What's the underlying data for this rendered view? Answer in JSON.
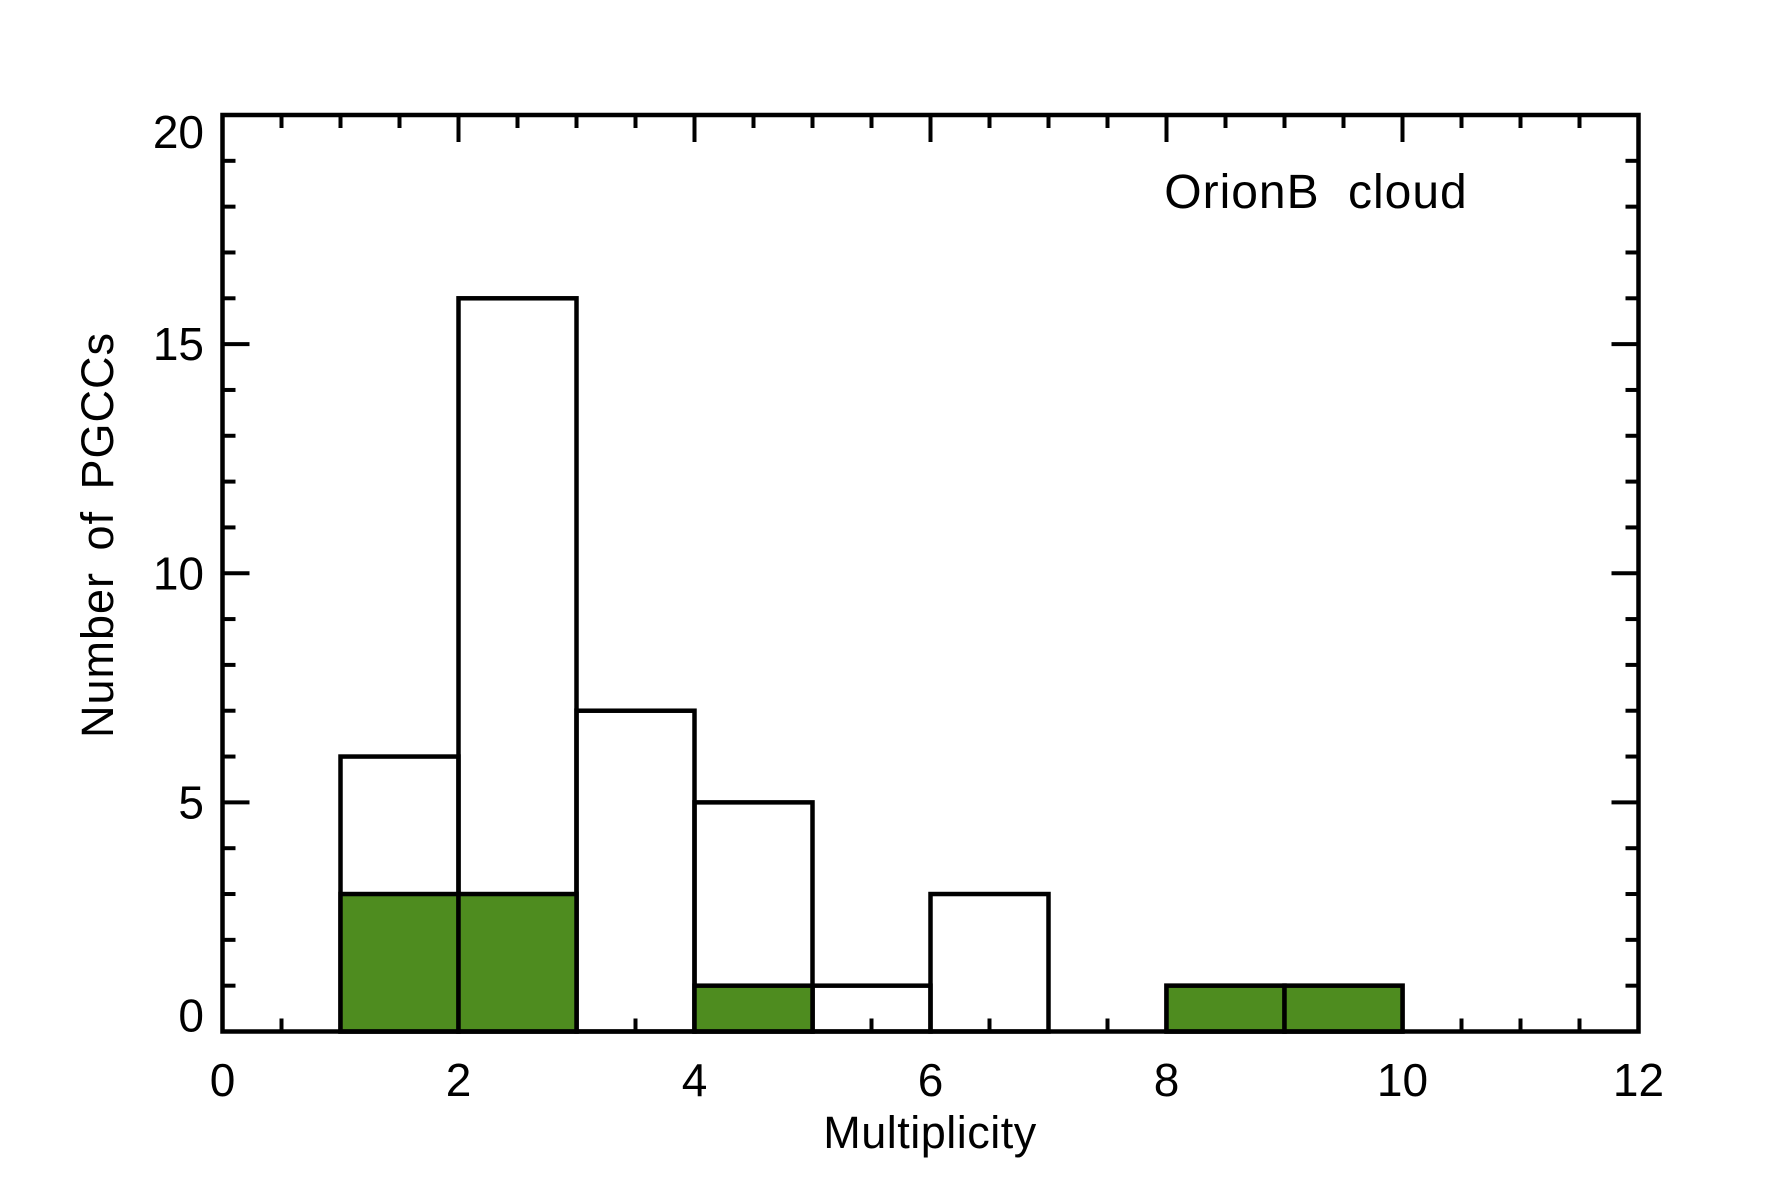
{
  "chart_data": {
    "type": "bar",
    "subtype": "histogram",
    "title": "OrionB cloud",
    "xlabel": "Multiplicity",
    "ylabel": "Number of PGCCs",
    "xlim": [
      0,
      12
    ],
    "ylim": [
      0,
      20
    ],
    "x_major_ticks": [
      0,
      2,
      4,
      6,
      8,
      10,
      12
    ],
    "x_tick_labels": [
      "0",
      "2",
      "4",
      "6",
      "8",
      "10",
      "12"
    ],
    "x_minor_tick_step": 0.5,
    "y_major_ticks": [
      0,
      5,
      10,
      15,
      20
    ],
    "y_tick_labels": [
      "0",
      "5",
      "10",
      "15",
      "20"
    ],
    "y_minor_tick_step": 1,
    "grid": false,
    "legend": "none",
    "bin_edges": [
      0,
      1,
      2,
      3,
      4,
      5,
      6,
      7,
      8,
      9,
      10,
      11,
      12
    ],
    "series": [
      {
        "name": "open-histogram",
        "style": "open",
        "fill_color": "#ffffff",
        "counts": [
          0,
          6,
          16,
          7,
          5,
          1,
          3,
          0,
          1,
          1,
          0,
          0
        ]
      },
      {
        "name": "filled-histogram",
        "style": "filled",
        "fill_color": "#4e8c1f",
        "counts": [
          0,
          3,
          3,
          0,
          1,
          0,
          0,
          0,
          1,
          1,
          0,
          0
        ]
      }
    ],
    "colors": {
      "line": "#000000",
      "background": "#ffffff",
      "filled_bar": "#4e8c1f"
    }
  }
}
